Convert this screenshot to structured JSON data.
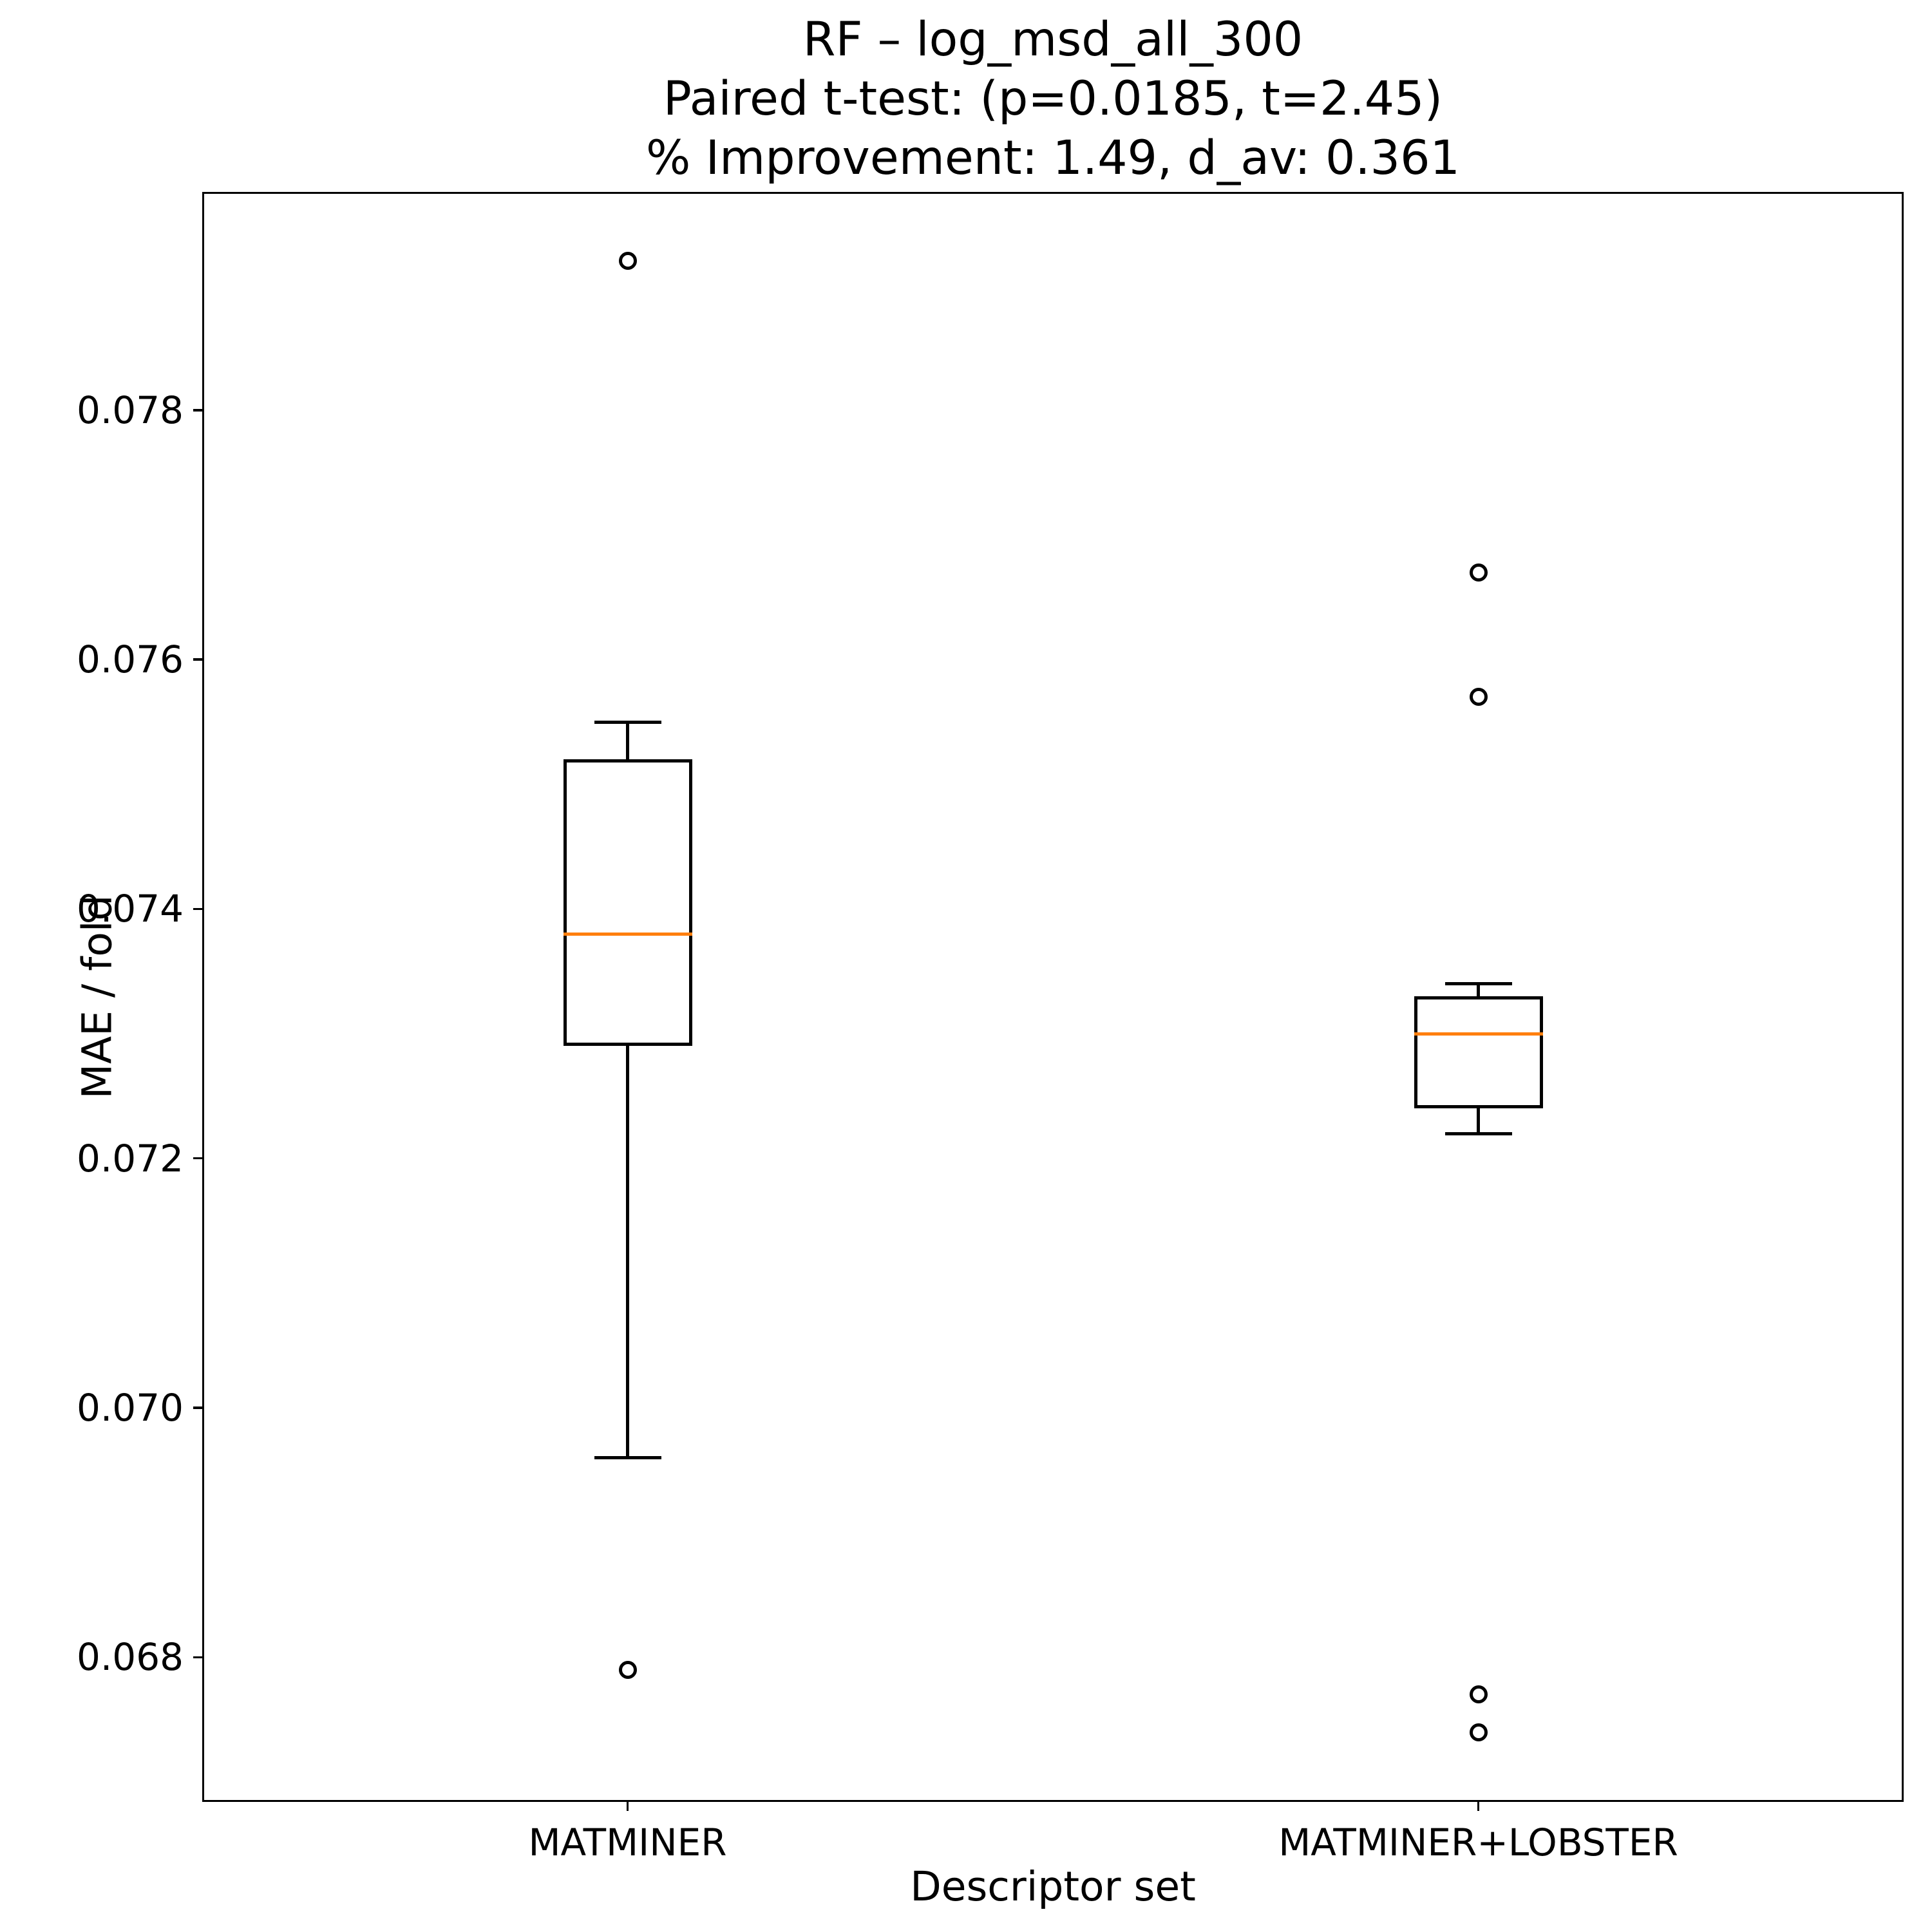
{
  "chart_data": {
    "type": "boxplot",
    "title_lines": [
      "RF – log_msd_all_300",
      "Paired t-test: (p=0.0185, t=2.45)",
      "% Improvement: 1.49, d_av: 0.361"
    ],
    "stats": {
      "model": "RF",
      "target": "log_msd_all_300",
      "p_value": 0.0185,
      "t_statistic": 2.45,
      "percent_improvement": 1.49,
      "d_av": 0.361
    },
    "xlabel": "Descriptor set",
    "ylabel": "MAE / fold",
    "categories": [
      "MATMINER",
      "MATMINER+LOBSTER"
    ],
    "yticks": [
      0.068,
      0.07,
      0.072,
      0.074,
      0.076,
      0.078
    ],
    "ytick_labels": [
      "0.068",
      "0.070",
      "0.072",
      "0.074",
      "0.076",
      "0.078"
    ],
    "ylim": [
      0.06684,
      0.07975
    ],
    "grid": false,
    "legend": null,
    "boxes": [
      {
        "category": "MATMINER",
        "whisker_low": 0.0696,
        "q1": 0.0729,
        "median": 0.0738,
        "q3": 0.0752,
        "whisker_high": 0.0755,
        "outliers": [
          0.0679,
          0.0792
        ]
      },
      {
        "category": "MATMINER+LOBSTER",
        "whisker_low": 0.0722,
        "q1": 0.0724,
        "median": 0.073,
        "q3": 0.0733,
        "whisker_high": 0.0734,
        "outliers": [
          0.0674,
          0.0677,
          0.0757,
          0.0767
        ]
      }
    ],
    "colors": {
      "median": "#ff7f0e",
      "box": "#000000",
      "text": "#000000",
      "background": "#ffffff"
    }
  }
}
